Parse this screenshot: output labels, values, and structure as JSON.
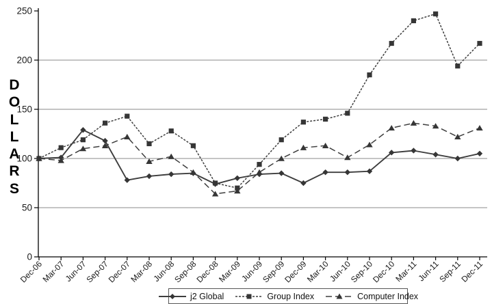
{
  "chart_data": {
    "type": "line",
    "title": "",
    "ylabel": "DOLLARS",
    "xlabel": "",
    "ylim": [
      0,
      250
    ],
    "y_ticks": [
      0,
      50,
      100,
      150,
      200,
      250
    ],
    "gridlines": [
      50,
      100,
      150,
      200
    ],
    "legend_position": "bottom",
    "x_categories": [
      "Dec-06",
      "Mar-07",
      "Jun-07",
      "Sep-07",
      "Dec-07",
      "Mar-08",
      "Jun-08",
      "Sep-08",
      "Dec-08",
      "Mar-09",
      "Jun-09",
      "Sep-09",
      "Dec-09",
      "Mar-10",
      "Jun-10",
      "Sep-10",
      "Dec-10",
      "Mar-11",
      "Jun-11",
      "Sep-11",
      "Dec-11"
    ],
    "series": [
      {
        "name": "j2 Global",
        "marker": "diamond",
        "dash": "solid",
        "values": [
          100,
          101,
          129,
          118,
          78,
          82,
          84,
          85,
          74,
          80,
          84,
          85,
          75,
          86,
          86,
          87,
          106,
          108,
          104,
          100,
          105
        ]
      },
      {
        "name": "Group Index",
        "marker": "square",
        "dash": "dotted",
        "values": [
          100,
          111,
          119,
          136,
          143,
          115,
          128,
          113,
          75,
          70,
          94,
          119,
          137,
          140,
          146,
          185,
          217,
          240,
          247,
          194,
          217
        ]
      },
      {
        "name": "Computer Index",
        "marker": "triangle",
        "dash": "dashed",
        "values": [
          100,
          98,
          110,
          113,
          122,
          97,
          102,
          86,
          64,
          67,
          86,
          100,
          111,
          113,
          101,
          114,
          131,
          136,
          133,
          122,
          131
        ]
      }
    ]
  },
  "colors": {
    "line": "#3d3d3d",
    "marker": "#363636",
    "grid": "#8a8a8a",
    "axis": "#000000",
    "tick_text": "#1a1a1a",
    "legend_border": "#555555"
  }
}
